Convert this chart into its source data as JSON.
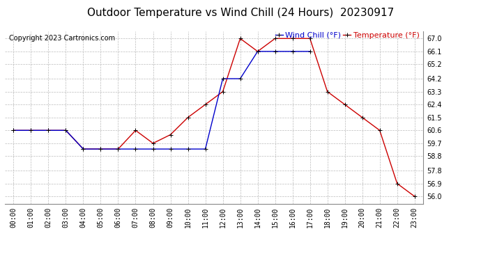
{
  "title": "Outdoor Temperature vs Wind Chill (24 Hours)  20230917",
  "copyright": "Copyright 2023 Cartronics.com",
  "legend_wind_chill": "Wind Chill (°F)",
  "legend_temperature": "Temperature (°F)",
  "hours": [
    "00:00",
    "01:00",
    "02:00",
    "03:00",
    "04:00",
    "05:00",
    "06:00",
    "07:00",
    "08:00",
    "09:00",
    "10:00",
    "11:00",
    "12:00",
    "13:00",
    "14:00",
    "15:00",
    "16:00",
    "17:00",
    "18:00",
    "19:00",
    "20:00",
    "21:00",
    "22:00",
    "23:00"
  ],
  "temperature": [
    60.6,
    60.6,
    60.6,
    60.6,
    59.3,
    59.3,
    59.3,
    60.6,
    59.7,
    60.3,
    61.5,
    62.4,
    63.3,
    67.0,
    66.1,
    67.0,
    67.0,
    67.0,
    63.3,
    62.4,
    61.5,
    60.6,
    56.9,
    56.0
  ],
  "wind_chill": [
    60.6,
    60.6,
    60.6,
    60.6,
    59.3,
    59.3,
    59.3,
    59.3,
    59.3,
    59.3,
    59.3,
    59.3,
    64.2,
    64.2,
    66.1,
    66.1,
    66.1,
    66.1,
    null,
    null,
    null,
    null,
    null,
    null
  ],
  "temp_color": "#cc0000",
  "wind_chill_color": "#0000cc",
  "bg_color": "#ffffff",
  "grid_color": "#bbbbbb",
  "ylim_min": 55.5,
  "ylim_max": 67.5,
  "yticks": [
    56.0,
    56.9,
    57.8,
    58.8,
    59.7,
    60.6,
    61.5,
    62.4,
    63.3,
    64.2,
    65.2,
    66.1,
    67.0
  ],
  "title_fontsize": 11,
  "axis_fontsize": 7,
  "copyright_fontsize": 7,
  "legend_fontsize": 8,
  "marker": "+",
  "marker_size": 5,
  "linewidth": 1.0
}
